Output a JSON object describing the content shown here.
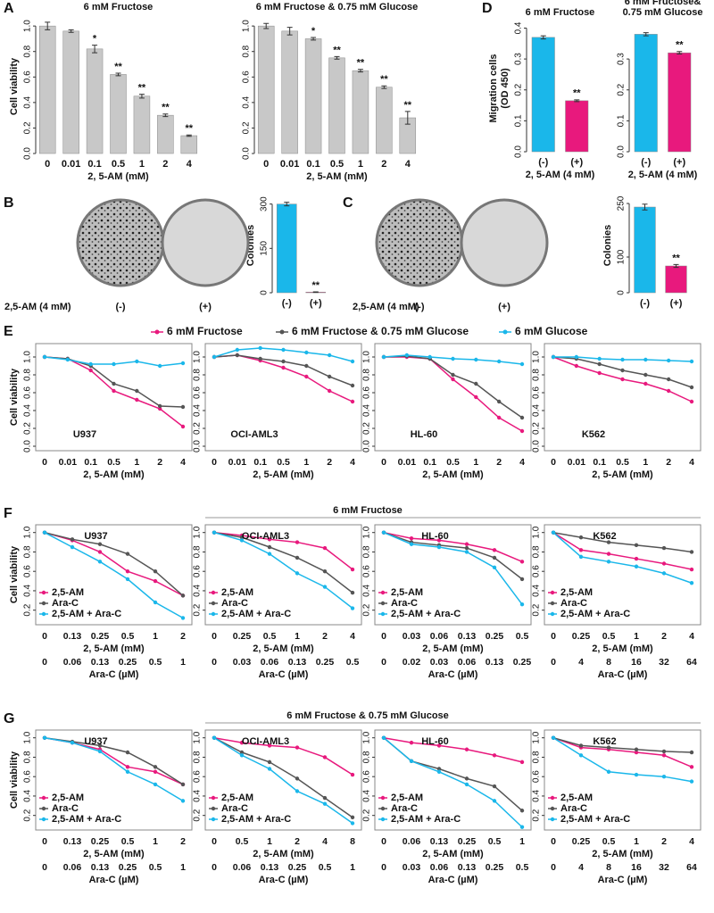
{
  "chart_data": [
    {
      "type": "bar",
      "panel": "A",
      "title": "6 mM Fructose",
      "ylabel": "Cell viability",
      "xlabel": "2, 5-AM (mM)",
      "categories": [
        "0",
        "0.01",
        "0.1",
        "0.5",
        "1",
        "2",
        "4"
      ],
      "values": [
        1.0,
        0.96,
        0.82,
        0.62,
        0.45,
        0.3,
        0.14
      ],
      "errors": [
        0.03,
        0.01,
        0.03,
        0.01,
        0.015,
        0.01,
        0.005
      ],
      "annotations": [
        null,
        null,
        "*",
        "**",
        "**",
        "**",
        "**"
      ],
      "color": "#c8c8c8",
      "ylim": [
        0,
        1.05
      ],
      "yticks": [
        {
          "value": 0,
          "label": "0.0"
        },
        0.2,
        0.4,
        0.6,
        0.8,
        {
          "value": 1,
          "label": "1.0"
        }
      ]
    },
    {
      "type": "bar",
      "title": "6 mM Fructose & 0.75 mM Glucose",
      "xlabel": "2, 5-AM (mM)",
      "categories": [
        "0",
        "0.01",
        "0.1",
        "0.5",
        "1",
        "2",
        "4"
      ],
      "values": [
        1.0,
        0.96,
        0.9,
        0.75,
        0.65,
        0.52,
        0.28
      ],
      "errors": [
        0.02,
        0.03,
        0.01,
        0.01,
        0.01,
        0.01,
        0.05
      ],
      "annotations": [
        null,
        null,
        "*",
        "**",
        "**",
        "**",
        "**"
      ],
      "color": "#c8c8c8",
      "ylim": [
        0,
        1.05
      ],
      "yticks": [
        {
          "value": 0,
          "label": "0.0"
        },
        0.2,
        0.4,
        0.6,
        0.8,
        {
          "value": 1,
          "label": "1.0"
        }
      ]
    },
    {
      "type": "bar",
      "panel": "D",
      "title": "6 mM Fructose",
      "ylabel": [
        "Migration cells",
        "(OD 450)"
      ],
      "xlabel": "2, 5-AM (4 mM)",
      "categories": [
        "(-)",
        "(+)"
      ],
      "values": [
        0.37,
        0.165
      ],
      "errors": [
        0.005,
        0.003
      ],
      "annotations": [
        null,
        "**"
      ],
      "colors": [
        "#1ab7ea",
        "#e8197d"
      ],
      "ylim": [
        0,
        0.41
      ],
      "yticks": [
        {
          "value": 0,
          "label": "0.0"
        },
        0.1,
        0.2,
        0.3,
        0.4
      ]
    },
    {
      "type": "bar",
      "title": [
        "6 mM Fructose&",
        "0.75 mM Glucose"
      ],
      "xlabel": "2, 5-AM (4 mM)",
      "categories": [
        "(-)",
        "(+)"
      ],
      "values": [
        0.38,
        0.32
      ],
      "errors": [
        0.005,
        0.004
      ],
      "annotations": [
        null,
        "**"
      ],
      "colors": [
        "#1ab7ea",
        "#e8197d"
      ],
      "ylim": [
        0,
        0.41
      ],
      "yticks": [
        {
          "value": 0,
          "label": "0.0"
        },
        0.1,
        0.2,
        0.3
      ]
    },
    {
      "type": "bar",
      "panel": "B",
      "ylabel": "Colonies",
      "dish_label": "2,5-AM (4 mM)",
      "dish_categories": [
        "(-)",
        "(+)"
      ],
      "categories": [
        "(-)",
        "(+)"
      ],
      "values": [
        300,
        2
      ],
      "errors": [
        6,
        1
      ],
      "annotations": [
        null,
        "**"
      ],
      "colors": [
        "#1ab7ea",
        "#e8197d"
      ],
      "ylim": [
        0,
        320
      ],
      "yticks": [
        0,
        150,
        300
      ]
    },
    {
      "type": "bar",
      "panel": "C",
      "ylabel": "Colonies",
      "dish_label": "2,5-AM (4 mM)",
      "dish_categories": [
        "(-)",
        "(+)"
      ],
      "categories": [
        "(-)",
        "(+)"
      ],
      "values": [
        240,
        75
      ],
      "errors": [
        8,
        4
      ],
      "annotations": [
        null,
        "**"
      ],
      "colors": [
        "#1ab7ea",
        "#e8197d"
      ],
      "ylim": [
        0,
        265
      ],
      "yticks": [
        0,
        100,
        250
      ]
    },
    {
      "type": "line",
      "panel": "E",
      "ylabel": "Cell viability",
      "cell_line": "U937",
      "xlabel": "2, 5-AM (mM)",
      "categories": [
        "0",
        "0.01",
        "0.1",
        "0.5",
        "1",
        "2",
        "4"
      ],
      "ylim": [
        -0.05,
        1.15
      ],
      "yticks": [
        {
          "value": 0,
          "label": "0.0"
        },
        0.2,
        0.4,
        0.6,
        0.8,
        {
          "value": 1,
          "label": "1.0"
        }
      ],
      "series": [
        {
          "name": "6 mM Fructose",
          "color": "#e8197d",
          "values": [
            1,
            0.98,
            0.85,
            0.62,
            0.52,
            0.42,
            0.22
          ]
        },
        {
          "name": "6 mM Fructose & 0.75 mM Glucose",
          "color": "#555555",
          "values": [
            1,
            0.98,
            0.9,
            0.7,
            0.62,
            0.45,
            0.44
          ]
        },
        {
          "name": "6 mM Glucose",
          "color": "#1ab7ea",
          "values": [
            1,
            0.97,
            0.92,
            0.92,
            0.95,
            0.9,
            0.93
          ]
        }
      ]
    },
    {
      "type": "line",
      "cell_line": "OCI-AML3",
      "xlabel": "2, 5-AM (mM)",
      "categories": [
        "0",
        "0.01",
        "0.1",
        "0.5",
        "1",
        "2",
        "4"
      ],
      "ylim": [
        -0.05,
        1.15
      ],
      "yticks": [
        {
          "value": 0,
          "label": "0.0"
        },
        0.2,
        0.4,
        0.6,
        0.8,
        {
          "value": 1,
          "label": "1.0"
        }
      ],
      "series": [
        {
          "color": "#e8197d",
          "values": [
            1,
            1.02,
            0.96,
            0.88,
            0.78,
            0.62,
            0.5
          ]
        },
        {
          "color": "#555555",
          "values": [
            1,
            1.02,
            0.98,
            0.95,
            0.9,
            0.78,
            0.68
          ]
        },
        {
          "color": "#1ab7ea",
          "values": [
            1,
            1.08,
            1.1,
            1.08,
            1.05,
            1.02,
            0.95
          ]
        }
      ]
    },
    {
      "type": "line",
      "cell_line": "HL-60",
      "xlabel": "2, 5-AM (mM)",
      "categories": [
        "0",
        "0.01",
        "0.1",
        "0.5",
        "1",
        "2",
        "4"
      ],
      "ylim": [
        -0.05,
        1.15
      ],
      "yticks": [
        {
          "value": 0,
          "label": "0.0"
        },
        0.2,
        0.4,
        0.6,
        0.8,
        {
          "value": 1,
          "label": "1.0"
        }
      ],
      "series": [
        {
          "color": "#e8197d",
          "values": [
            1,
            1.0,
            0.98,
            0.75,
            0.55,
            0.32,
            0.17
          ]
        },
        {
          "color": "#555555",
          "values": [
            1,
            1.01,
            0.98,
            0.8,
            0.7,
            0.5,
            0.32
          ]
        },
        {
          "color": "#1ab7ea",
          "values": [
            1,
            1.02,
            1.0,
            0.98,
            0.97,
            0.95,
            0.92
          ]
        }
      ]
    },
    {
      "type": "line",
      "cell_line": "K562",
      "xlabel": "2, 5-AM (mM)",
      "categories": [
        "0",
        "0.01",
        "0.1",
        "0.5",
        "1",
        "2",
        "4"
      ],
      "ylim": [
        -0.05,
        1.15
      ],
      "yticks": [
        {
          "value": 0,
          "label": "0.0"
        },
        0.2,
        0.4,
        0.6,
        0.8,
        {
          "value": 1,
          "label": "1.0"
        }
      ],
      "series": [
        {
          "color": "#e8197d",
          "values": [
            1,
            0.9,
            0.82,
            0.75,
            0.7,
            0.62,
            0.5
          ]
        },
        {
          "color": "#555555",
          "values": [
            1,
            0.98,
            0.92,
            0.85,
            0.8,
            0.75,
            0.66
          ]
        },
        {
          "color": "#1ab7ea",
          "values": [
            1,
            1.0,
            0.98,
            0.97,
            0.97,
            0.96,
            0.95
          ]
        }
      ]
    },
    {
      "type": "line",
      "panel": "F",
      "group_title": "6 mM Fructose",
      "ylabel": "Cell viability",
      "cell_line": "U937",
      "categories": [
        "0",
        "0.13",
        "0.25",
        "0.5",
        "1",
        "2"
      ],
      "xlabel": "2, 5-AM (mM)",
      "x2_categories": [
        "0",
        "0.06",
        "0.13",
        "0.25",
        "0.5",
        "1"
      ],
      "x2_label": "Ara-C (µM)",
      "ylim": [
        0.05,
        1.08
      ],
      "yticks": [
        0.2,
        0.4,
        0.6,
        0.8,
        {
          "value": 1,
          "label": "1.0"
        }
      ],
      "series": [
        {
          "name": "2,5-AM",
          "color": "#e8197d",
          "values": [
            1,
            0.92,
            0.8,
            0.6,
            0.5,
            0.35
          ]
        },
        {
          "name": "Ara-C",
          "color": "#555555",
          "values": [
            1,
            0.93,
            0.88,
            0.78,
            0.6,
            0.35
          ]
        },
        {
          "name": "2,5-AM + Ara-C",
          "color": "#1ab7ea",
          "values": [
            1,
            0.85,
            0.7,
            0.52,
            0.28,
            0.12
          ]
        }
      ]
    },
    {
      "type": "line",
      "cell_line": "OCI-AML3",
      "categories": [
        "0",
        "0.25",
        "0.5",
        "1",
        "2",
        "4"
      ],
      "xlabel": "2, 5-AM (mM)",
      "x2_categories": [
        "0",
        "0.03",
        "0.06",
        "0.13",
        "0.25",
        "0.5"
      ],
      "x2_label": "Ara-C (µM)",
      "ylim": [
        0.05,
        1.08
      ],
      "yticks": [
        0.2,
        0.4,
        0.6,
        0.8,
        {
          "value": 1,
          "label": "1.0"
        }
      ],
      "series": [
        {
          "name": "2,5-AM",
          "color": "#e8197d",
          "values": [
            1,
            0.97,
            0.93,
            0.9,
            0.84,
            0.62
          ]
        },
        {
          "name": "Ara-C",
          "color": "#555555",
          "values": [
            1,
            0.95,
            0.85,
            0.74,
            0.6,
            0.38
          ]
        },
        {
          "name": "2,5-AM + Ara-C",
          "color": "#1ab7ea",
          "values": [
            1,
            0.92,
            0.78,
            0.58,
            0.44,
            0.22
          ]
        }
      ]
    },
    {
      "type": "line",
      "cell_line": "HL-60",
      "categories": [
        "0",
        "0.03",
        "0.06",
        "0.13",
        "0.25",
        "0.5"
      ],
      "xlabel": "2, 5-AM (mM)",
      "x2_categories": [
        "0",
        "0.02",
        "0.03",
        "0.06",
        "0.13",
        "0.25"
      ],
      "x2_label": "Ara-C (µM)",
      "ylim": [
        0.05,
        1.08
      ],
      "yticks": [
        0.2,
        0.4,
        0.6,
        0.8,
        {
          "value": 1,
          "label": "1.0"
        }
      ],
      "series": [
        {
          "name": "2,5-AM",
          "color": "#e8197d",
          "values": [
            1,
            0.94,
            0.92,
            0.88,
            0.82,
            0.7
          ]
        },
        {
          "name": "Ara-C",
          "color": "#555555",
          "values": [
            1,
            0.9,
            0.87,
            0.84,
            0.74,
            0.52
          ]
        },
        {
          "name": "2,5-AM + Ara-C",
          "color": "#1ab7ea",
          "values": [
            1,
            0.88,
            0.85,
            0.8,
            0.64,
            0.26
          ]
        }
      ]
    },
    {
      "type": "line",
      "cell_line": "K562",
      "categories": [
        "0",
        "0.25",
        "0.5",
        "1",
        "2",
        "4"
      ],
      "xlabel": "2, 5-AM (mM)",
      "x2_categories": [
        "0",
        "4",
        "8",
        "16",
        "32",
        "64"
      ],
      "x2_label": "Ara-C (µM)",
      "ylim": [
        0.05,
        1.08
      ],
      "yticks": [
        0.2,
        0.4,
        0.6,
        0.8,
        {
          "value": 1,
          "label": "1.0"
        }
      ],
      "series": [
        {
          "name": "2,5-AM",
          "color": "#e8197d",
          "values": [
            1,
            0.82,
            0.78,
            0.73,
            0.68,
            0.62
          ]
        },
        {
          "name": "Ara-C",
          "color": "#555555",
          "values": [
            1,
            0.95,
            0.9,
            0.87,
            0.84,
            0.8
          ]
        },
        {
          "name": "2,5-AM + Ara-C",
          "color": "#1ab7ea",
          "values": [
            1,
            0.75,
            0.7,
            0.65,
            0.58,
            0.48
          ]
        }
      ]
    },
    {
      "type": "line",
      "panel": "G",
      "group_title": "6 mM Fructose & 0.75 mM Glucose",
      "ylabel": "Cell viability",
      "cell_line": "U937",
      "categories": [
        "0",
        "0.13",
        "0.25",
        "0.5",
        "1",
        "2"
      ],
      "xlabel": "2, 5-AM (mM)",
      "x2_categories": [
        "0",
        "0.06",
        "0.13",
        "0.25",
        "0.5",
        "1"
      ],
      "x2_label": "Ara-C (µM)",
      "ylim": [
        0.05,
        1.08
      ],
      "yticks": [
        0.2,
        0.4,
        0.6,
        0.8,
        {
          "value": 1,
          "label": "1.0"
        }
      ],
      "series": [
        {
          "name": "2,5-AM",
          "color": "#e8197d",
          "values": [
            1,
            0.95,
            0.88,
            0.7,
            0.65,
            0.52
          ]
        },
        {
          "name": "Ara-C",
          "color": "#555555",
          "values": [
            1,
            0.96,
            0.92,
            0.85,
            0.7,
            0.52
          ]
        },
        {
          "name": "2,5-AM + Ara-C",
          "color": "#1ab7ea",
          "values": [
            1,
            0.95,
            0.86,
            0.65,
            0.52,
            0.35
          ]
        }
      ]
    },
    {
      "type": "line",
      "cell_line": "OCI-AML3",
      "categories": [
        "0",
        "0.5",
        "1",
        "2",
        "4",
        "8"
      ],
      "xlabel": "2, 5-AM (mM)",
      "x2_categories": [
        "0",
        "0.06",
        "0.13",
        "0.25",
        "0.5",
        "1"
      ],
      "x2_label": "Ara-C (µM)",
      "ylim": [
        0.05,
        1.08
      ],
      "yticks": [
        0.2,
        0.4,
        0.6,
        0.8,
        {
          "value": 1,
          "label": "1.0"
        }
      ],
      "series": [
        {
          "name": "2,5-AM",
          "color": "#e8197d",
          "values": [
            1,
            0.95,
            0.92,
            0.9,
            0.8,
            0.62
          ]
        },
        {
          "name": "Ara-C",
          "color": "#555555",
          "values": [
            1,
            0.85,
            0.75,
            0.58,
            0.38,
            0.18
          ]
        },
        {
          "name": "2,5-AM + Ara-C",
          "color": "#1ab7ea",
          "values": [
            1,
            0.82,
            0.68,
            0.45,
            0.32,
            0.12
          ]
        }
      ]
    },
    {
      "type": "line",
      "cell_line": "HL-60",
      "categories": [
        "0",
        "0.06",
        "0.13",
        "0.25",
        "0.5",
        "1"
      ],
      "xlabel": "2, 5-AM (mM)",
      "x2_categories": [
        "0",
        "0.03",
        "0.06",
        "0.13",
        "0.25",
        "0.5"
      ],
      "x2_label": "Ara-C (µM)",
      "ylim": [
        0.05,
        1.08
      ],
      "yticks": [
        0.2,
        0.4,
        0.6,
        0.8,
        {
          "value": 1,
          "label": "1.0"
        }
      ],
      "series": [
        {
          "name": "2,5-AM",
          "color": "#e8197d",
          "values": [
            1,
            0.95,
            0.92,
            0.88,
            0.82,
            0.75
          ]
        },
        {
          "name": "Ara-C",
          "color": "#555555",
          "values": [
            1,
            0.76,
            0.68,
            0.58,
            0.5,
            0.25
          ]
        },
        {
          "name": "2,5-AM + Ara-C",
          "color": "#1ab7ea",
          "values": [
            1,
            0.76,
            0.65,
            0.52,
            0.35,
            0.08
          ]
        }
      ]
    },
    {
      "type": "line",
      "cell_line": "K562",
      "categories": [
        "0",
        "0.25",
        "0.5",
        "1",
        "2",
        "4"
      ],
      "xlabel": "2, 5-AM (mM)",
      "x2_categories": [
        "0",
        "4",
        "8",
        "16",
        "32",
        "64"
      ],
      "x2_label": "Ara-C (µM)",
      "ylim": [
        0.05,
        1.08
      ],
      "yticks": [
        0.2,
        0.4,
        0.6,
        0.8,
        {
          "value": 1,
          "label": "1.0"
        }
      ],
      "series": [
        {
          "name": "2,5-AM",
          "color": "#e8197d",
          "values": [
            1,
            0.9,
            0.88,
            0.85,
            0.82,
            0.7
          ]
        },
        {
          "name": "Ara-C",
          "color": "#555555",
          "values": [
            1,
            0.92,
            0.9,
            0.88,
            0.86,
            0.85
          ]
        },
        {
          "name": "2,5-AM + Ara-C",
          "color": "#1ab7ea",
          "values": [
            1,
            0.82,
            0.65,
            0.62,
            0.6,
            0.55
          ]
        }
      ]
    }
  ]
}
